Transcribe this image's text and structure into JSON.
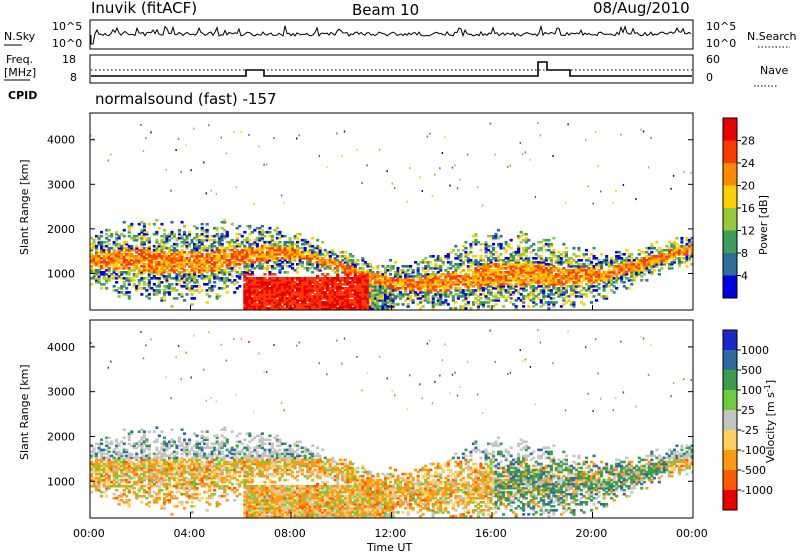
{
  "header": {
    "station": "Inuvik (fitACF)",
    "beam": "Beam 10",
    "date": "08/Aug/2010"
  },
  "noise_panel": {
    "left_label": "N.Sky",
    "left_ticks": [
      "10^5",
      "10^0"
    ],
    "right_ticks": [
      "10^5",
      "10^0"
    ],
    "right_label": "N.Search"
  },
  "freq_panel": {
    "left_label_1": "Freq.",
    "left_label_2": "[MHz]",
    "left_ticks": [
      "18",
      "8"
    ],
    "right_ticks": [
      "60",
      "0"
    ],
    "right_label": "Nave"
  },
  "cpid": {
    "label": "CPID",
    "value": "normalsound (fast) -157"
  },
  "chart_data": [
    {
      "type": "heatmap",
      "ylabel": "Slant Range [km]",
      "ylim": [
        180,
        4600
      ],
      "yticks": [
        "1000",
        "2000",
        "3000",
        "4000"
      ],
      "xlim": [
        "00:00",
        "24:00"
      ],
      "grid": false,
      "colorbar": {
        "label": "Power [dB]",
        "ticks": [
          "28",
          "24",
          "20",
          "16",
          "12",
          "8",
          "4"
        ],
        "colors": [
          "#e80000",
          "#ff3a00",
          "#ff8a00",
          "#ffd000",
          "#96c83c",
          "#3c9e5a",
          "#2e6e9a",
          "#0000e0"
        ]
      }
    },
    {
      "type": "heatmap",
      "ylabel": "Slant Range [km]",
      "ylim": [
        180,
        4600
      ],
      "yticks": [
        "1000",
        "2000",
        "3000",
        "4000"
      ],
      "xlim": [
        "00:00",
        "24:00"
      ],
      "grid": false,
      "colorbar": {
        "label": "Velocity [m s-1]",
        "ticks": [
          "1000",
          "500",
          "100",
          "25",
          "-25",
          "-100",
          "-500",
          "-1000"
        ],
        "colors": [
          "#1a28c8",
          "#2e6aa0",
          "#3a9e4e",
          "#6ccc3c",
          "#c4c4c0",
          "#ffd060",
          "#ff9a10",
          "#ff5a00",
          "#e80000"
        ]
      }
    }
  ],
  "xaxis": {
    "ticks": [
      "00:00",
      "04:00",
      "08:00",
      "12:00",
      "16:00",
      "20:00",
      "00:00"
    ],
    "label": "Time UT"
  }
}
